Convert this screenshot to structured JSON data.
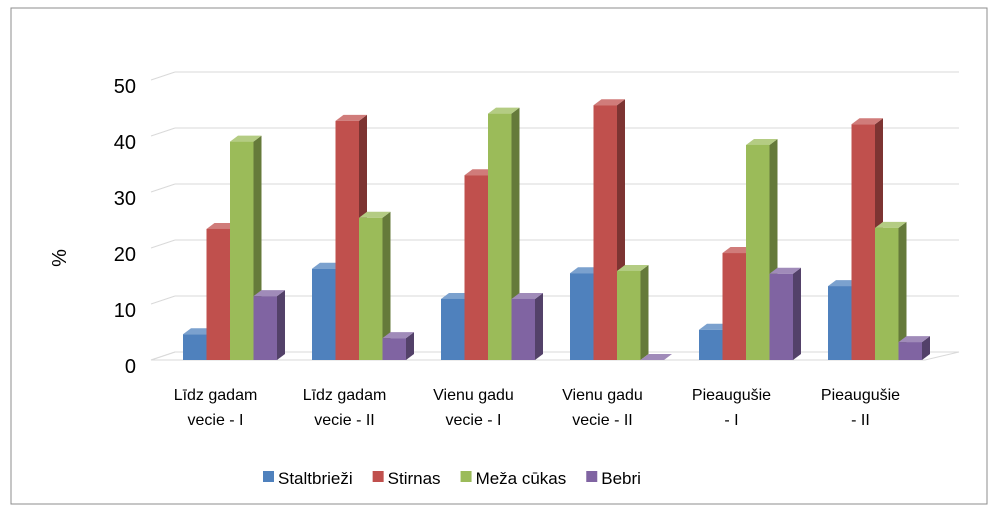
{
  "chart_data": {
    "type": "bar3d",
    "y_label": "%",
    "categories": [
      "Līdz gadam vecie - I",
      "Līdz gadam vecie - II",
      "Vienu gadu vecie - I",
      "Vienu gadu vecie - II",
      "Pieaugušie - I",
      "Pieaugušie - II"
    ],
    "series": [
      {
        "name": "Staltbrieži",
        "color": "#4F81BD",
        "values": [
          4.6,
          16.3,
          10.9,
          15.5,
          5.4,
          13.2
        ]
      },
      {
        "name": "Stirnas",
        "color": "#C0504D",
        "values": [
          23.4,
          42.7,
          33,
          45.5,
          19.1,
          42.1
        ]
      },
      {
        "name": "Meža cūkas",
        "color": "#9BBB59",
        "values": [
          39,
          25.4,
          44,
          15.9,
          38.4,
          23.6
        ]
      },
      {
        "name": "Bebri",
        "color": "#8064A2",
        "values": [
          11.4,
          3.9,
          10.9,
          0,
          15.4,
          3.2
        ]
      }
    ],
    "ylim": [
      0,
      50
    ],
    "yticks": [
      0,
      10,
      20,
      30,
      40,
      50
    ],
    "grid": true,
    "legend": "bottom"
  }
}
